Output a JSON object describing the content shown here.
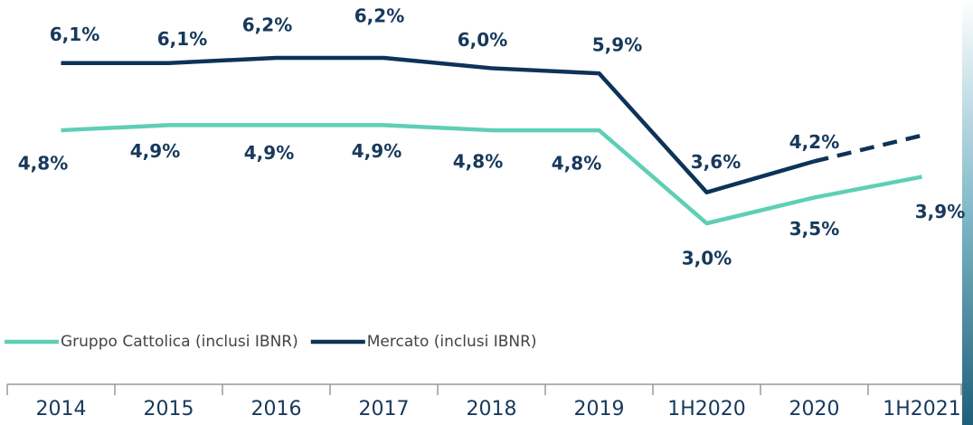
{
  "chart_data": {
    "type": "line",
    "categories": [
      "2014",
      "2015",
      "2016",
      "2017",
      "2018",
      "2019",
      "1H2020",
      "2020",
      "1H2021"
    ],
    "series": [
      {
        "name": "Gruppo Cattolica (inclusi IBNR)",
        "color": "#5ecfb5",
        "values": [
          4.8,
          4.9,
          4.9,
          4.9,
          4.8,
          4.8,
          3.0,
          3.5,
          3.9
        ],
        "value_labels": [
          "4,8%",
          "4,9%",
          "4,9%",
          "4,9%",
          "4,8%",
          "4,8%",
          "3,0%",
          "3,5%",
          "3,9%"
        ],
        "dashed": [
          false,
          false,
          false,
          false,
          false,
          false,
          false,
          false
        ]
      },
      {
        "name": "Mercato (inclusi IBNR)",
        "color": "#0d3358",
        "values": [
          6.1,
          6.1,
          6.2,
          6.2,
          6.0,
          5.9,
          3.6,
          4.2,
          4.7
        ],
        "value_labels": [
          "6,1%",
          "6,1%",
          "6,2%",
          "6,2%",
          "6,0%",
          "5,9%",
          "3,6%",
          "4,2%",
          null
        ],
        "dashed": [
          false,
          false,
          false,
          false,
          false,
          false,
          false,
          true
        ]
      }
    ],
    "legend": "bottom-left"
  }
}
